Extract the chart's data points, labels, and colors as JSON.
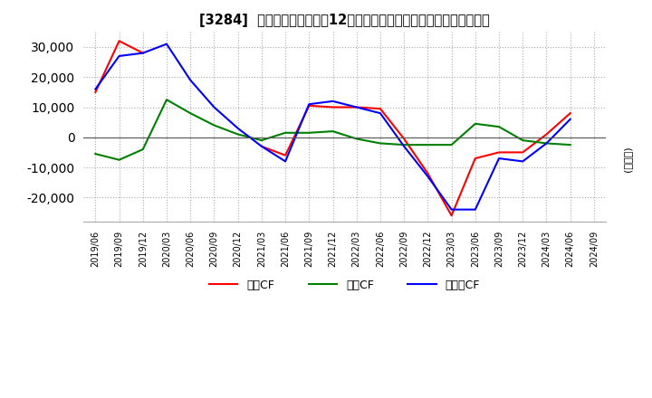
{
  "title": "[3284]  キャッシュフローの12か月移動合計の対前年同期増減額の推移",
  "ylabel": "(百万円)",
  "ylim": [
    -28000,
    35000
  ],
  "yticks": [
    -20000,
    -10000,
    0,
    10000,
    20000,
    30000
  ],
  "x_labels": [
    "2019/06",
    "2019/09",
    "2019/12",
    "2020/03",
    "2020/06",
    "2020/09",
    "2020/12",
    "2021/03",
    "2021/06",
    "2021/09",
    "2021/12",
    "2022/03",
    "2022/06",
    "2022/09",
    "2022/12",
    "2023/03",
    "2023/06",
    "2023/09",
    "2023/12",
    "2024/03",
    "2024/06",
    "2024/09"
  ],
  "operating_cf": [
    15000,
    32000,
    28000,
    null,
    null,
    null,
    null,
    -3000,
    -6000,
    10500,
    10000,
    10000,
    9500,
    -500,
    -12000,
    -26000,
    -7000,
    -5000,
    -5000,
    1000,
    8000,
    null
  ],
  "investing_cf": [
    -5500,
    -7500,
    -4000,
    12500,
    8000,
    4000,
    1000,
    -1000,
    1500,
    1500,
    2000,
    -500,
    -2000,
    -2500,
    -2500,
    -2500,
    4500,
    3500,
    -1000,
    -2000,
    -2500,
    null
  ],
  "free_cf": [
    16000,
    27000,
    28000,
    31000,
    19000,
    10000,
    3000,
    -3000,
    -8000,
    11000,
    12000,
    10000,
    8000,
    -3000,
    -13000,
    -24000,
    -24000,
    -7000,
    -8000,
    -2000,
    6000,
    null
  ],
  "operating_color": "#ff0000",
  "investing_color": "#008000",
  "free_color": "#0000ff",
  "background_color": "#ffffff",
  "grid_color": "#aaaaaa",
  "title_fontsize": 10.5,
  "legend_labels": [
    "営業CF",
    "投資CF",
    "フリーCF"
  ]
}
